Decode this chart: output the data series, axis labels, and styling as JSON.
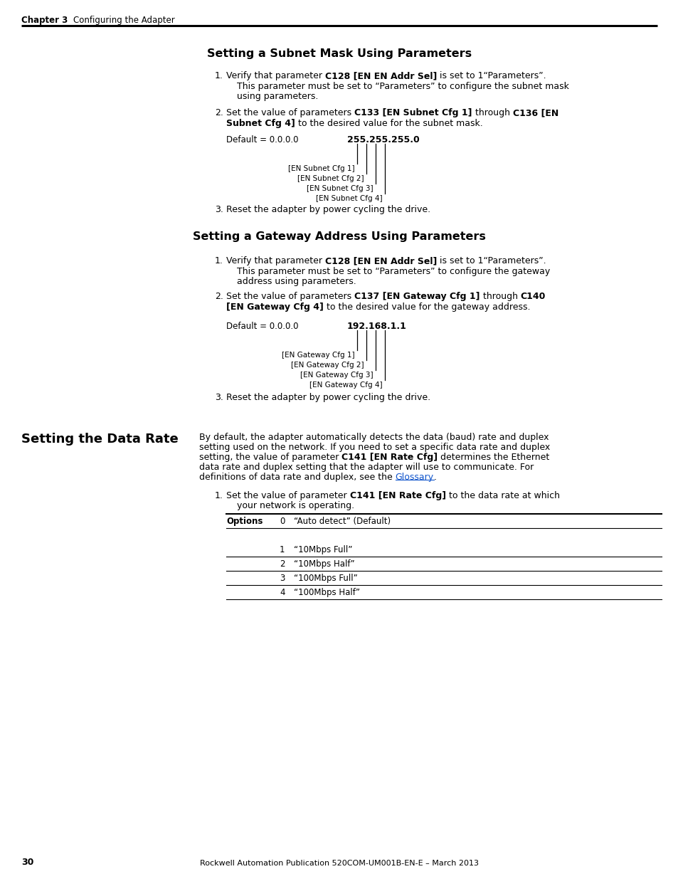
{
  "page_bg": "#ffffff",
  "header_chapter": "Chapter 3",
  "header_chapter_gap": "    ",
  "header_title": "Configuring the Adapter",
  "footer_text": "30",
  "footer_center": "Rockwell Automation Publication 520COM-UM001B-EN-E – March 2013",
  "section1_title": "Setting a Subnet Mask Using Parameters",
  "section1_cfg_labels": [
    "[EN Subnet Cfg 1]",
    "[EN Subnet Cfg 2]",
    "[EN Subnet Cfg 3]",
    "[EN Subnet Cfg 4]"
  ],
  "section1_default_label": "Default = 0.0.0.0",
  "section1_default_value": "255.255.255.0",
  "section2_title": "Setting a Gateway Address Using Parameters",
  "section2_cfg_labels": [
    "[EN Gateway Cfg 1]",
    "[EN Gateway Cfg 2]",
    "[EN Gateway Cfg 3]",
    "[EN Gateway Cfg 4]"
  ],
  "section2_default_label": "Default = 0.0.0.0",
  "section2_default_value": "192.168.1.1",
  "section3_title": "Setting the Data Rate",
  "section3_options": [
    [
      "0",
      "“Auto detect” (Default)"
    ],
    [
      "1",
      "“10Mbps Full”"
    ],
    [
      "2",
      "“10Mbps Half”"
    ],
    [
      "3",
      "“100Mbps Full”"
    ],
    [
      "4",
      "“100Mbps Half”"
    ]
  ]
}
